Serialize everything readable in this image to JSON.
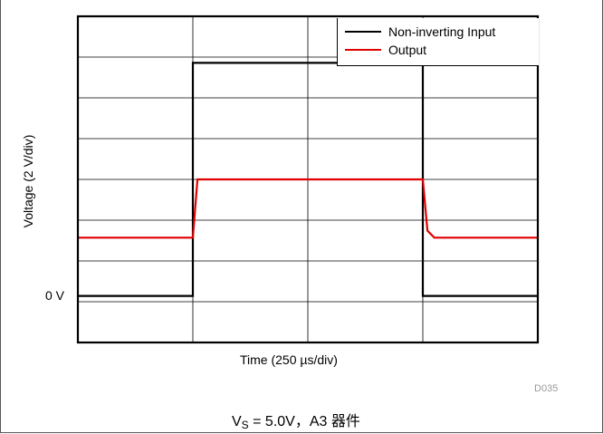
{
  "chart_data": {
    "type": "line",
    "xlabel": "Time (250 µs/div)",
    "ylabel": "Voltage (2 V/div)",
    "x_units": "µs",
    "y_units": "V",
    "xlim": [
      0,
      2000
    ],
    "ylim": [
      -1,
      6
    ],
    "y_zero_label": "0 V",
    "grid": true,
    "legend_position": "top-right",
    "series": [
      {
        "name": "Non-inverting Input",
        "color": "#000000",
        "x": [
          0,
          500,
          500,
          1500,
          1500,
          2000
        ],
        "y": [
          0,
          0,
          5,
          5,
          0,
          0
        ]
      },
      {
        "name": "Output",
        "color": "#e00000",
        "x": [
          0,
          500,
          520,
          1500,
          1520,
          1550,
          2000
        ],
        "y": [
          1.25,
          1.25,
          2.5,
          2.5,
          1.4,
          1.25,
          1.25
        ]
      }
    ]
  },
  "figure_id": "D035",
  "caption": {
    "v": "V",
    "sub": "S",
    "rest": " = 5.0V，A3 器件"
  },
  "legend": {
    "input_label": "Non-inverting Input",
    "output_label": "Output"
  },
  "colors": {
    "input": "#000000",
    "output": "#e00000",
    "grid": "#000000"
  }
}
